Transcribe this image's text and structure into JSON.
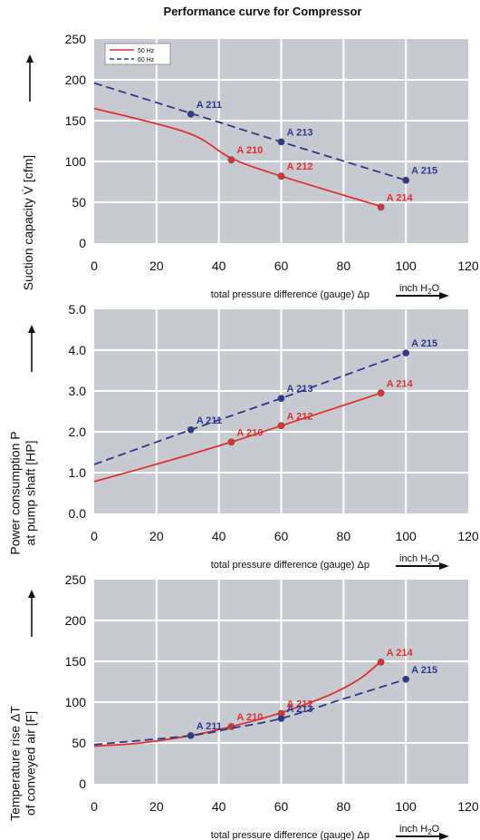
{
  "title": "Performance curve for Compressor",
  "colors": {
    "hz50": "#e03030",
    "hz60": "#2b3990",
    "plot_bg": "#c8cad2",
    "grid": "#ffffff"
  },
  "legend": {
    "hz50": "50 Hz",
    "hz60": "60 Hz"
  },
  "chart_data": [
    {
      "type": "line",
      "ylabel_lines": [
        "Suction capacity V̇ [cfm]"
      ],
      "xlabel": "total pressure difference (gauge)  Δp",
      "xunit_pre": "inch H",
      "xunit_sub": "2",
      "xunit_post": "O",
      "xlim": [
        0,
        120
      ],
      "ylim": [
        0,
        250
      ],
      "xticks": [
        "0",
        "20",
        "40",
        "60",
        "80",
        "100",
        "120"
      ],
      "yticks": [
        "0",
        "50",
        "100",
        "150",
        "200",
        "250"
      ],
      "legend": true,
      "series": [
        {
          "name": "50 Hz",
          "color_key": "hz50",
          "dashed": false,
          "line": [
            [
              0,
              165
            ],
            [
              30,
              135
            ],
            [
              44,
              104
            ],
            [
              60,
              82
            ],
            [
              92,
              45
            ]
          ],
          "points": [
            {
              "label": "A 210",
              "x": 44,
              "y": 102
            },
            {
              "label": "A 212",
              "x": 60,
              "y": 82
            },
            {
              "label": "A 214",
              "x": 92,
              "y": 44
            }
          ]
        },
        {
          "name": "60 Hz",
          "color_key": "hz60",
          "dashed": true,
          "line": [
            [
              0,
              196
            ],
            [
              31,
              159
            ],
            [
              60,
              124
            ],
            [
              100,
              77
            ]
          ],
          "points": [
            {
              "label": "A 211",
              "x": 31,
              "y": 158
            },
            {
              "label": "A 213",
              "x": 60,
              "y": 124
            },
            {
              "label": "A 215",
              "x": 100,
              "y": 77
            }
          ]
        }
      ]
    },
    {
      "type": "line",
      "ylabel_lines": [
        "Power consumption P",
        "at pump shaft [HP]"
      ],
      "xlabel": "total pressure difference (gauge)  Δp",
      "xunit_pre": "inch H",
      "xunit_sub": "2",
      "xunit_post": "O",
      "xlim": [
        0,
        120
      ],
      "ylim": [
        0,
        5
      ],
      "xticks": [
        "0",
        "20",
        "40",
        "60",
        "80",
        "100",
        "120"
      ],
      "yticks": [
        "0.0",
        "1.0",
        "2.0",
        "3.0",
        "4.0",
        "5.0"
      ],
      "legend": false,
      "series": [
        {
          "name": "50 Hz",
          "color_key": "hz50",
          "dashed": false,
          "line": [
            [
              0,
              0.78
            ],
            [
              22,
              1.25
            ],
            [
              44,
              1.75
            ],
            [
              60,
              2.15
            ],
            [
              92,
              2.95
            ]
          ],
          "points": [
            {
              "label": "A 210",
              "x": 44,
              "y": 1.75
            },
            {
              "label": "A 212",
              "x": 60,
              "y": 2.15
            },
            {
              "label": "A 214",
              "x": 92,
              "y": 2.95
            }
          ]
        },
        {
          "name": "60 Hz",
          "color_key": "hz60",
          "dashed": true,
          "line": [
            [
              0,
              1.2
            ],
            [
              31,
              2.05
            ],
            [
              60,
              2.82
            ],
            [
              100,
              3.93
            ]
          ],
          "points": [
            {
              "label": "A 211",
              "x": 31,
              "y": 2.05
            },
            {
              "label": "A 213",
              "x": 60,
              "y": 2.82
            },
            {
              "label": "A 215",
              "x": 100,
              "y": 3.93
            }
          ]
        }
      ]
    },
    {
      "type": "line",
      "ylabel_lines": [
        "Temperature rise ΔT",
        "of conveyed air [F]"
      ],
      "xlabel": "total pressure difference (gauge)  Δp",
      "xunit_pre": "inch H",
      "xunit_sub": "2",
      "xunit_post": "O",
      "xlim": [
        0,
        120
      ],
      "ylim": [
        0,
        250
      ],
      "xticks": [
        "0",
        "20",
        "40",
        "60",
        "80",
        "100",
        "120"
      ],
      "yticks": [
        "0",
        "50",
        "100",
        "150",
        "200",
        "250"
      ],
      "legend": false,
      "series": [
        {
          "name": "50 Hz",
          "color_key": "hz50",
          "dashed": false,
          "line": [
            [
              0,
              46
            ],
            [
              15,
              50
            ],
            [
              31,
              59
            ],
            [
              44,
              70
            ],
            [
              60,
              87
            ],
            [
              75,
              108
            ],
            [
              85,
              128
            ],
            [
              92,
              150
            ]
          ],
          "points": [
            {
              "label": "A 210",
              "x": 44,
              "y": 70
            },
            {
              "label": "A 212",
              "x": 60,
              "y": 86
            },
            {
              "label": "A 214",
              "x": 92,
              "y": 149
            }
          ]
        },
        {
          "name": "60 Hz",
          "color_key": "hz60",
          "dashed": true,
          "line": [
            [
              0,
              48
            ],
            [
              31,
              59
            ],
            [
              44,
              68
            ],
            [
              60,
              80
            ],
            [
              80,
              104
            ],
            [
              100,
              128
            ]
          ],
          "points": [
            {
              "label": "A 211",
              "x": 31,
              "y": 59
            },
            {
              "label": "A 213",
              "x": 60,
              "y": 80
            },
            {
              "label": "A 215",
              "x": 100,
              "y": 128
            }
          ]
        }
      ]
    }
  ]
}
